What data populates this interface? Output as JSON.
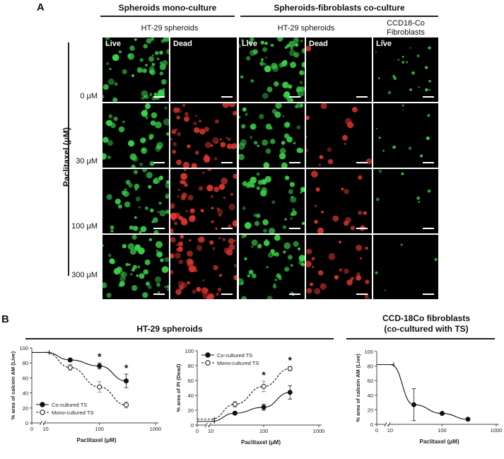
{
  "panelA": {
    "letter": "A",
    "header_mono": "Spheroids mono-culture",
    "header_co": "Spheroids-fibroblasts co-culture",
    "sub_mono": "HT-29 spheroids",
    "sub_co": "HT-29 spheroids",
    "sub_fib_line1": "CCD18-Co",
    "sub_fib_line2": "Fibroblasts",
    "tag_live": "Live",
    "tag_dead": "Dead",
    "ylabel": "Paclitaxel (μM)",
    "concentrations": [
      "0 μM",
      "30 μM",
      "100 μM",
      "300 μM"
    ],
    "colors": {
      "live": "#39d04a",
      "dead": "#d8352e"
    }
  },
  "panelB": {
    "letter": "B",
    "group_title": "HT-29 spheroids",
    "fib_title_line1": "CCD-18Co fibroblasts",
    "fib_title_line2": "(co-cultured with TS)"
  },
  "chart_data": [
    {
      "type": "line",
      "xlabel": "Paclitaxel (μM)",
      "ylabel": "% area of calcein AM (Live)",
      "x_scale": "log with axis break",
      "xticks": [
        "0",
        "10",
        "100",
        "1000"
      ],
      "yticks": [
        "0",
        "20",
        "40",
        "60",
        "80",
        "100"
      ],
      "ylim": [
        0,
        100
      ],
      "x": [
        0,
        30,
        100,
        300
      ],
      "series": [
        {
          "name": "Co-cultured TS",
          "style": "solid filled",
          "values": [
            94,
            84,
            76,
            56
          ],
          "err": [
            2,
            2,
            4,
            9
          ]
        },
        {
          "name": "Mono-cultured TS",
          "style": "dashed open",
          "values": [
            94,
            74,
            48,
            24
          ],
          "err": [
            2,
            4,
            7,
            4
          ]
        }
      ],
      "annotations": [
        {
          "x": 100,
          "text": "*"
        },
        {
          "x": 300,
          "text": "*"
        }
      ],
      "legend": "bottom-left"
    },
    {
      "type": "line",
      "xlabel": "Paclitaxel (μM)",
      "ylabel": "% area of PI (Dead)",
      "x_scale": "log with axis break",
      "xticks": [
        "0",
        "10",
        "100",
        "1000"
      ],
      "yticks": [
        "0",
        "20",
        "40",
        "60",
        "80",
        "100"
      ],
      "ylim": [
        0,
        100
      ],
      "x": [
        0,
        30,
        100,
        300
      ],
      "series": [
        {
          "name": "Co-cultured TS",
          "style": "solid filled",
          "values": [
            5,
            16,
            24,
            44
          ],
          "err": [
            1,
            2,
            4,
            9
          ]
        },
        {
          "name": "Mono-cultured TS",
          "style": "dashed open",
          "values": [
            8,
            28,
            52,
            76
          ],
          "err": [
            1,
            4,
            7,
            3
          ]
        }
      ],
      "annotations": [
        {
          "x": 100,
          "text": "*"
        },
        {
          "x": 300,
          "text": "*"
        }
      ],
      "legend": "top-left"
    },
    {
      "type": "line",
      "xlabel": "Paclitaxel (μM)",
      "ylabel": "% area of calcein AM (Live)",
      "x_scale": "log with axis break",
      "xticks": [
        "0",
        "10",
        "100",
        "1000"
      ],
      "yticks": [
        "0",
        "20",
        "40",
        "60",
        "80",
        "100"
      ],
      "ylim": [
        0,
        100
      ],
      "x": [
        0,
        30,
        100,
        300
      ],
      "series": [
        {
          "name": "",
          "style": "solid filled",
          "values": [
            82,
            27,
            15,
            7
          ],
          "err": [
            2,
            22,
            1,
            1
          ]
        }
      ],
      "annotations": [],
      "legend": "none"
    }
  ]
}
